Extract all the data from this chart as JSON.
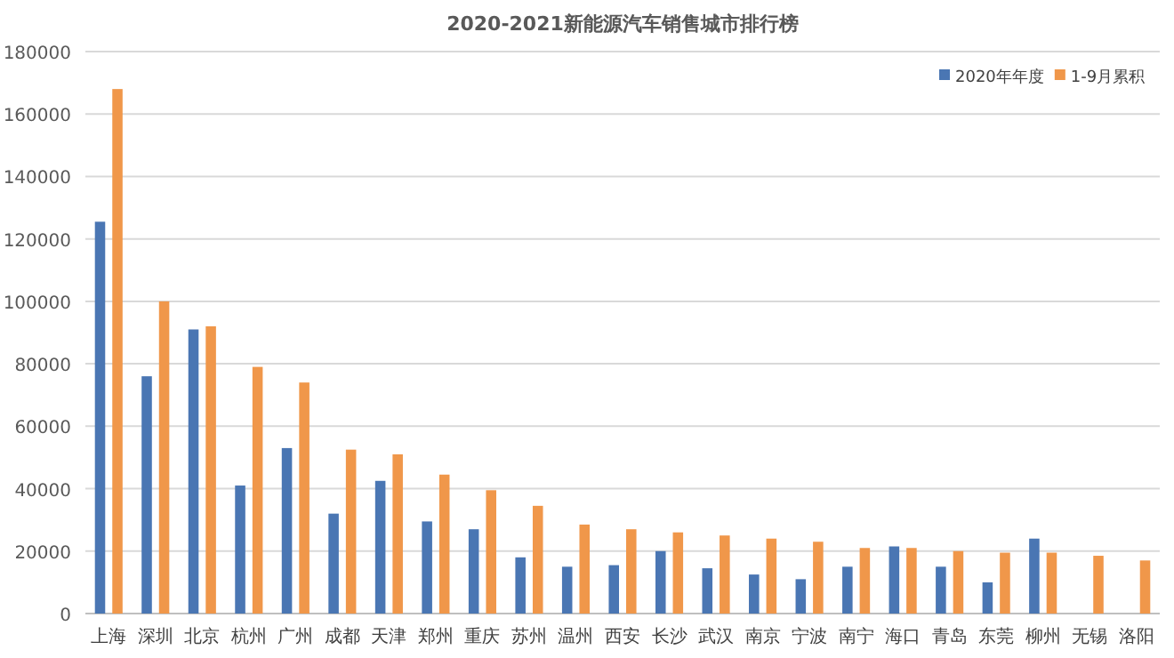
{
  "chart_data": {
    "type": "bar",
    "title": "2020-2021新能源汽车销售城市排行榜",
    "categories": [
      "上海",
      "深圳",
      "北京",
      "杭州",
      "广州",
      "成都",
      "天津",
      "郑州",
      "重庆",
      "苏州",
      "温州",
      "西安",
      "长沙",
      "武汉",
      "南京",
      "宁波",
      "南宁",
      "海口",
      "青岛",
      "东莞",
      "柳州",
      "无锡",
      "洛阳"
    ],
    "series": [
      {
        "name": "2020年年度",
        "color": "#4a76b3",
        "values": [
          125500,
          76000,
          91000,
          41000,
          53000,
          32000,
          42500,
          29500,
          27000,
          18000,
          15000,
          15500,
          20000,
          14500,
          12500,
          11000,
          15000,
          21500,
          15000,
          10000,
          24000,
          null,
          null
        ]
      },
      {
        "name": "1-9月累积",
        "color": "#f0974a",
        "values": [
          168000,
          100000,
          92000,
          79000,
          74000,
          52500,
          51000,
          44500,
          39500,
          34500,
          28500,
          27000,
          26000,
          25000,
          24000,
          23000,
          21000,
          21000,
          20000,
          19500,
          19500,
          18500,
          17000
        ]
      }
    ],
    "ylim": [
      0,
      180000
    ],
    "yticks": [
      0,
      20000,
      40000,
      60000,
      80000,
      100000,
      120000,
      140000,
      160000,
      180000
    ],
    "grid": "y",
    "legend": "top right"
  }
}
